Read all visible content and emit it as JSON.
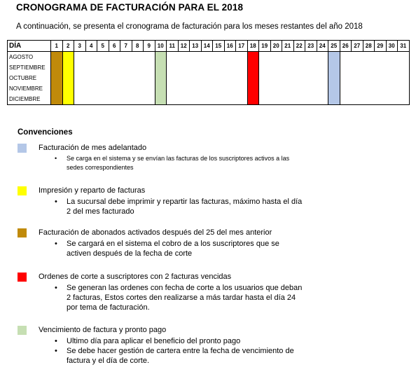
{
  "title": "CRONOGRAMA DE FACTURACIÓN PARA EL 2018",
  "intro": "A continuación, se presenta el cronograma de facturación para los meses restantes del año 2018",
  "table": {
    "header_label": "DÍA",
    "days": [
      "1",
      "2",
      "3",
      "4",
      "5",
      "6",
      "7",
      "8",
      "9",
      "10",
      "11",
      "12",
      "13",
      "14",
      "15",
      "16",
      "17",
      "18",
      "19",
      "20",
      "21",
      "22",
      "23",
      "24",
      "25",
      "26",
      "27",
      "28",
      "29",
      "30",
      "31"
    ],
    "months": [
      "AGOSTO",
      "SEPTIEMBRE",
      "OCTUBRE",
      "NOVIEMBRE",
      "DICIEMBRE"
    ],
    "highlighted_days": [
      {
        "day": 1,
        "color": "#c08a0a"
      },
      {
        "day": 2,
        "color": "#ffff00"
      },
      {
        "day": 10,
        "color": "#c6dfb3"
      },
      {
        "day": 18,
        "color": "#ff0000"
      },
      {
        "day": 25,
        "color": "#b4c7e7"
      }
    ]
  },
  "conventions_title": "Convenciones",
  "conventions": [
    {
      "color": "#b4c7e7",
      "label": "Facturación de mes adelantado",
      "bullets": [
        "Se carga en el sistema y se envían las facturas de los suscriptores activos a las sedes correspondientes"
      ]
    },
    {
      "color": "#ffff00",
      "label": "Impresión y reparto de facturas",
      "bullets": [
        "La sucursal debe imprimir y repartir las facturas, máximo hasta el día 2 del mes facturado"
      ]
    },
    {
      "color": "#c08a0a",
      "label": "Facturación de abonados activados después del 25 del mes anterior",
      "bullets": [
        "Se cargará en el sistema el cobro de a los suscriptores que se activen después de la fecha de corte"
      ]
    },
    {
      "color": "#ff0000",
      "label": "Ordenes de corte a suscriptores con 2 facturas vencidas",
      "bullets": [
        "Se generan las ordenes con fecha de corte a los usuarios que deban 2 facturas, Estos cortes den realizarse a más tardar hasta el día 24 por tema de facturación."
      ]
    },
    {
      "color": "#c6dfb3",
      "label": "Vencimiento de factura y pronto pago",
      "bullets": [
        "Ultimo día para aplicar el beneficio del pronto pago",
        "Se debe hacer gestión de cartera entre la fecha de vencimiento de factura y el día de corte."
      ]
    }
  ]
}
